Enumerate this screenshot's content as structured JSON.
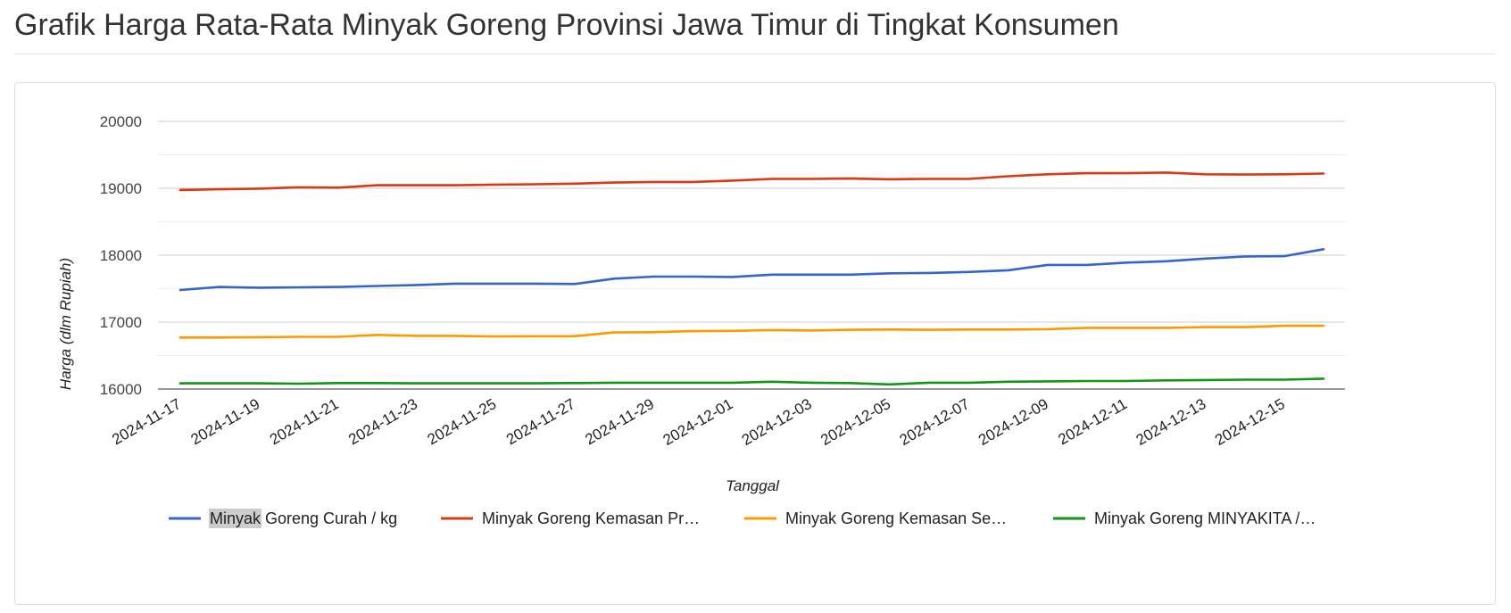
{
  "page": {
    "title": "Grafik Harga Rata-Rata Minyak Goreng Provinsi Jawa Timur di Tingkat Konsumen"
  },
  "chart_data": {
    "type": "line",
    "xlabel": "Tanggal",
    "ylabel": "Harga (dlm Rupiah)",
    "ylim": [
      16000,
      20000
    ],
    "y_ticks": [
      16000,
      17000,
      18000,
      19000,
      20000
    ],
    "gridlines": true,
    "legend_position": "bottom",
    "x": [
      "2024-11-17",
      "2024-11-18",
      "2024-11-19",
      "2024-11-20",
      "2024-11-21",
      "2024-11-22",
      "2024-11-23",
      "2024-11-24",
      "2024-11-25",
      "2024-11-26",
      "2024-11-27",
      "2024-11-28",
      "2024-11-29",
      "2024-11-30",
      "2024-12-01",
      "2024-12-02",
      "2024-12-03",
      "2024-12-04",
      "2024-12-05",
      "2024-12-06",
      "2024-12-07",
      "2024-12-08",
      "2024-12-09",
      "2024-12-10",
      "2024-12-11",
      "2024-12-12",
      "2024-12-13",
      "2024-12-14",
      "2024-12-15",
      "2024-12-16"
    ],
    "x_tick_labels": [
      "2024-11-17",
      "2024-11-19",
      "2024-11-21",
      "2024-11-23",
      "2024-11-25",
      "2024-11-27",
      "2024-11-29",
      "2024-12-01",
      "2024-12-03",
      "2024-12-05",
      "2024-12-07",
      "2024-12-09",
      "2024-12-11",
      "2024-12-13",
      "2024-12-15"
    ],
    "series": [
      {
        "name": "Minyak Goreng Curah / kg",
        "legend_label": "Minyak Goreng Curah / kg",
        "color": "#3366cc",
        "values": [
          17480,
          17525,
          17515,
          17520,
          17525,
          17540,
          17555,
          17575,
          17575,
          17575,
          17570,
          17650,
          17680,
          17680,
          17675,
          17710,
          17710,
          17710,
          17730,
          17735,
          17750,
          17775,
          17855,
          17855,
          17890,
          17910,
          17950,
          17980,
          17985,
          18090
        ]
      },
      {
        "name": "Minyak Goreng Kemasan Premium",
        "legend_label": "Minyak Goreng Kemasan Pr…",
        "color": "#dc3912",
        "values": [
          18975,
          18985,
          18995,
          19015,
          19010,
          19045,
          19045,
          19045,
          19055,
          19060,
          19070,
          19085,
          19095,
          19095,
          19115,
          19140,
          19140,
          19145,
          19135,
          19140,
          19140,
          19180,
          19210,
          19225,
          19225,
          19235,
          19210,
          19205,
          19210,
          19220
        ]
      },
      {
        "name": "Minyak Goreng Kemasan Sederhana",
        "legend_label": "Minyak Goreng Kemasan Se…",
        "color": "#ff9900",
        "values": [
          16770,
          16770,
          16775,
          16780,
          16780,
          16810,
          16795,
          16795,
          16785,
          16790,
          16790,
          16845,
          16850,
          16865,
          16870,
          16880,
          16875,
          16885,
          16890,
          16885,
          16890,
          16890,
          16895,
          16915,
          16915,
          16915,
          16925,
          16925,
          16945,
          16945
        ]
      },
      {
        "name": "Minyak Goreng MINYAKITA",
        "legend_label": "Minyak Goreng MINYAKITA /…",
        "color": "#109618",
        "values": [
          16085,
          16085,
          16085,
          16080,
          16090,
          16090,
          16085,
          16085,
          16085,
          16085,
          16090,
          16095,
          16095,
          16095,
          16095,
          16110,
          16095,
          16090,
          16070,
          16095,
          16095,
          16110,
          16115,
          16120,
          16120,
          16130,
          16135,
          16140,
          16140,
          16155
        ]
      }
    ],
    "legend_highlight": {
      "series_index": 0,
      "text": "Minyak"
    }
  }
}
